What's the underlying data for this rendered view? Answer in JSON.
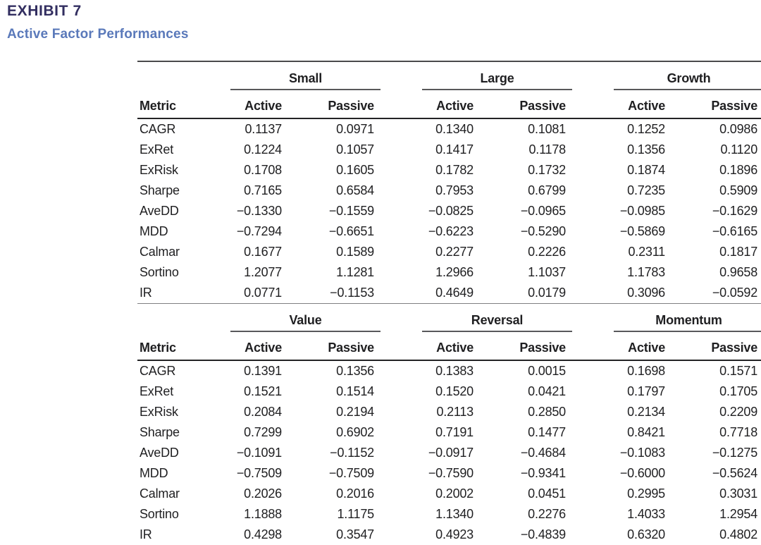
{
  "exhibit": {
    "label": "EXHIBIT 7",
    "title": "Active Factor Performances"
  },
  "colors": {
    "exhibit_label": "#322e60",
    "exhibit_title": "#5a79ba",
    "table_text": "#1f1f21",
    "heavy_rule": "#232325",
    "light_rule": "#59595b"
  },
  "table": {
    "metric_header": "Metric",
    "sub_headers": [
      "Active",
      "Passive"
    ],
    "sections": [
      {
        "groups": [
          "Small",
          "Large",
          "Growth"
        ],
        "rows": [
          {
            "metric": "CAGR",
            "values": [
              "0.1137",
              "0.0971",
              "0.1340",
              "0.1081",
              "0.1252",
              "0.0986"
            ]
          },
          {
            "metric": "ExRet",
            "values": [
              "0.1224",
              "0.1057",
              "0.1417",
              "0.1178",
              "0.1356",
              "0.1120"
            ]
          },
          {
            "metric": "ExRisk",
            "values": [
              "0.1708",
              "0.1605",
              "0.1782",
              "0.1732",
              "0.1874",
              "0.1896"
            ]
          },
          {
            "metric": "Sharpe",
            "values": [
              "0.7165",
              "0.6584",
              "0.7953",
              "0.6799",
              "0.7235",
              "0.5909"
            ]
          },
          {
            "metric": "AveDD",
            "values": [
              "−0.1330",
              "−0.1559",
              "−0.0825",
              "−0.0965",
              "−0.0985",
              "−0.1629"
            ]
          },
          {
            "metric": "MDD",
            "values": [
              "−0.7294",
              "−0.6651",
              "−0.6223",
              "−0.5290",
              "−0.5869",
              "−0.6165"
            ]
          },
          {
            "metric": "Calmar",
            "values": [
              "0.1677",
              "0.1589",
              "0.2277",
              "0.2226",
              "0.2311",
              "0.1817"
            ]
          },
          {
            "metric": "Sortino",
            "values": [
              "1.2077",
              "1.1281",
              "1.2966",
              "1.1037",
              "1.1783",
              "0.9658"
            ]
          },
          {
            "metric": "IR",
            "values": [
              "0.0771",
              "−0.1153",
              "0.4649",
              "0.0179",
              "0.3096",
              "−0.0592"
            ]
          }
        ]
      },
      {
        "groups": [
          "Value",
          "Reversal",
          "Momentum"
        ],
        "rows": [
          {
            "metric": "CAGR",
            "values": [
              "0.1391",
              "0.1356",
              "0.1383",
              "0.0015",
              "0.1698",
              "0.1571"
            ]
          },
          {
            "metric": "ExRet",
            "values": [
              "0.1521",
              "0.1514",
              "0.1520",
              "0.0421",
              "0.1797",
              "0.1705"
            ]
          },
          {
            "metric": "ExRisk",
            "values": [
              "0.2084",
              "0.2194",
              "0.2113",
              "0.2850",
              "0.2134",
              "0.2209"
            ]
          },
          {
            "metric": "Sharpe",
            "values": [
              "0.7299",
              "0.6902",
              "0.7191",
              "0.1477",
              "0.8421",
              "0.7718"
            ]
          },
          {
            "metric": "AveDD",
            "values": [
              "−0.1091",
              "−0.1152",
              "−0.0917",
              "−0.4684",
              "−0.1083",
              "−0.1275"
            ]
          },
          {
            "metric": "MDD",
            "values": [
              "−0.7509",
              "−0.7509",
              "−0.7590",
              "−0.9341",
              "−0.6000",
              "−0.5624"
            ]
          },
          {
            "metric": "Calmar",
            "values": [
              "0.2026",
              "0.2016",
              "0.2002",
              "0.0451",
              "0.2995",
              "0.3031"
            ]
          },
          {
            "metric": "Sortino",
            "values": [
              "1.1888",
              "1.1175",
              "1.1340",
              "0.2276",
              "1.4033",
              "1.2954"
            ]
          },
          {
            "metric": "IR",
            "values": [
              "0.4298",
              "0.3547",
              "0.4923",
              "−0.4839",
              "0.6320",
              "0.4802"
            ]
          }
        ]
      }
    ]
  }
}
